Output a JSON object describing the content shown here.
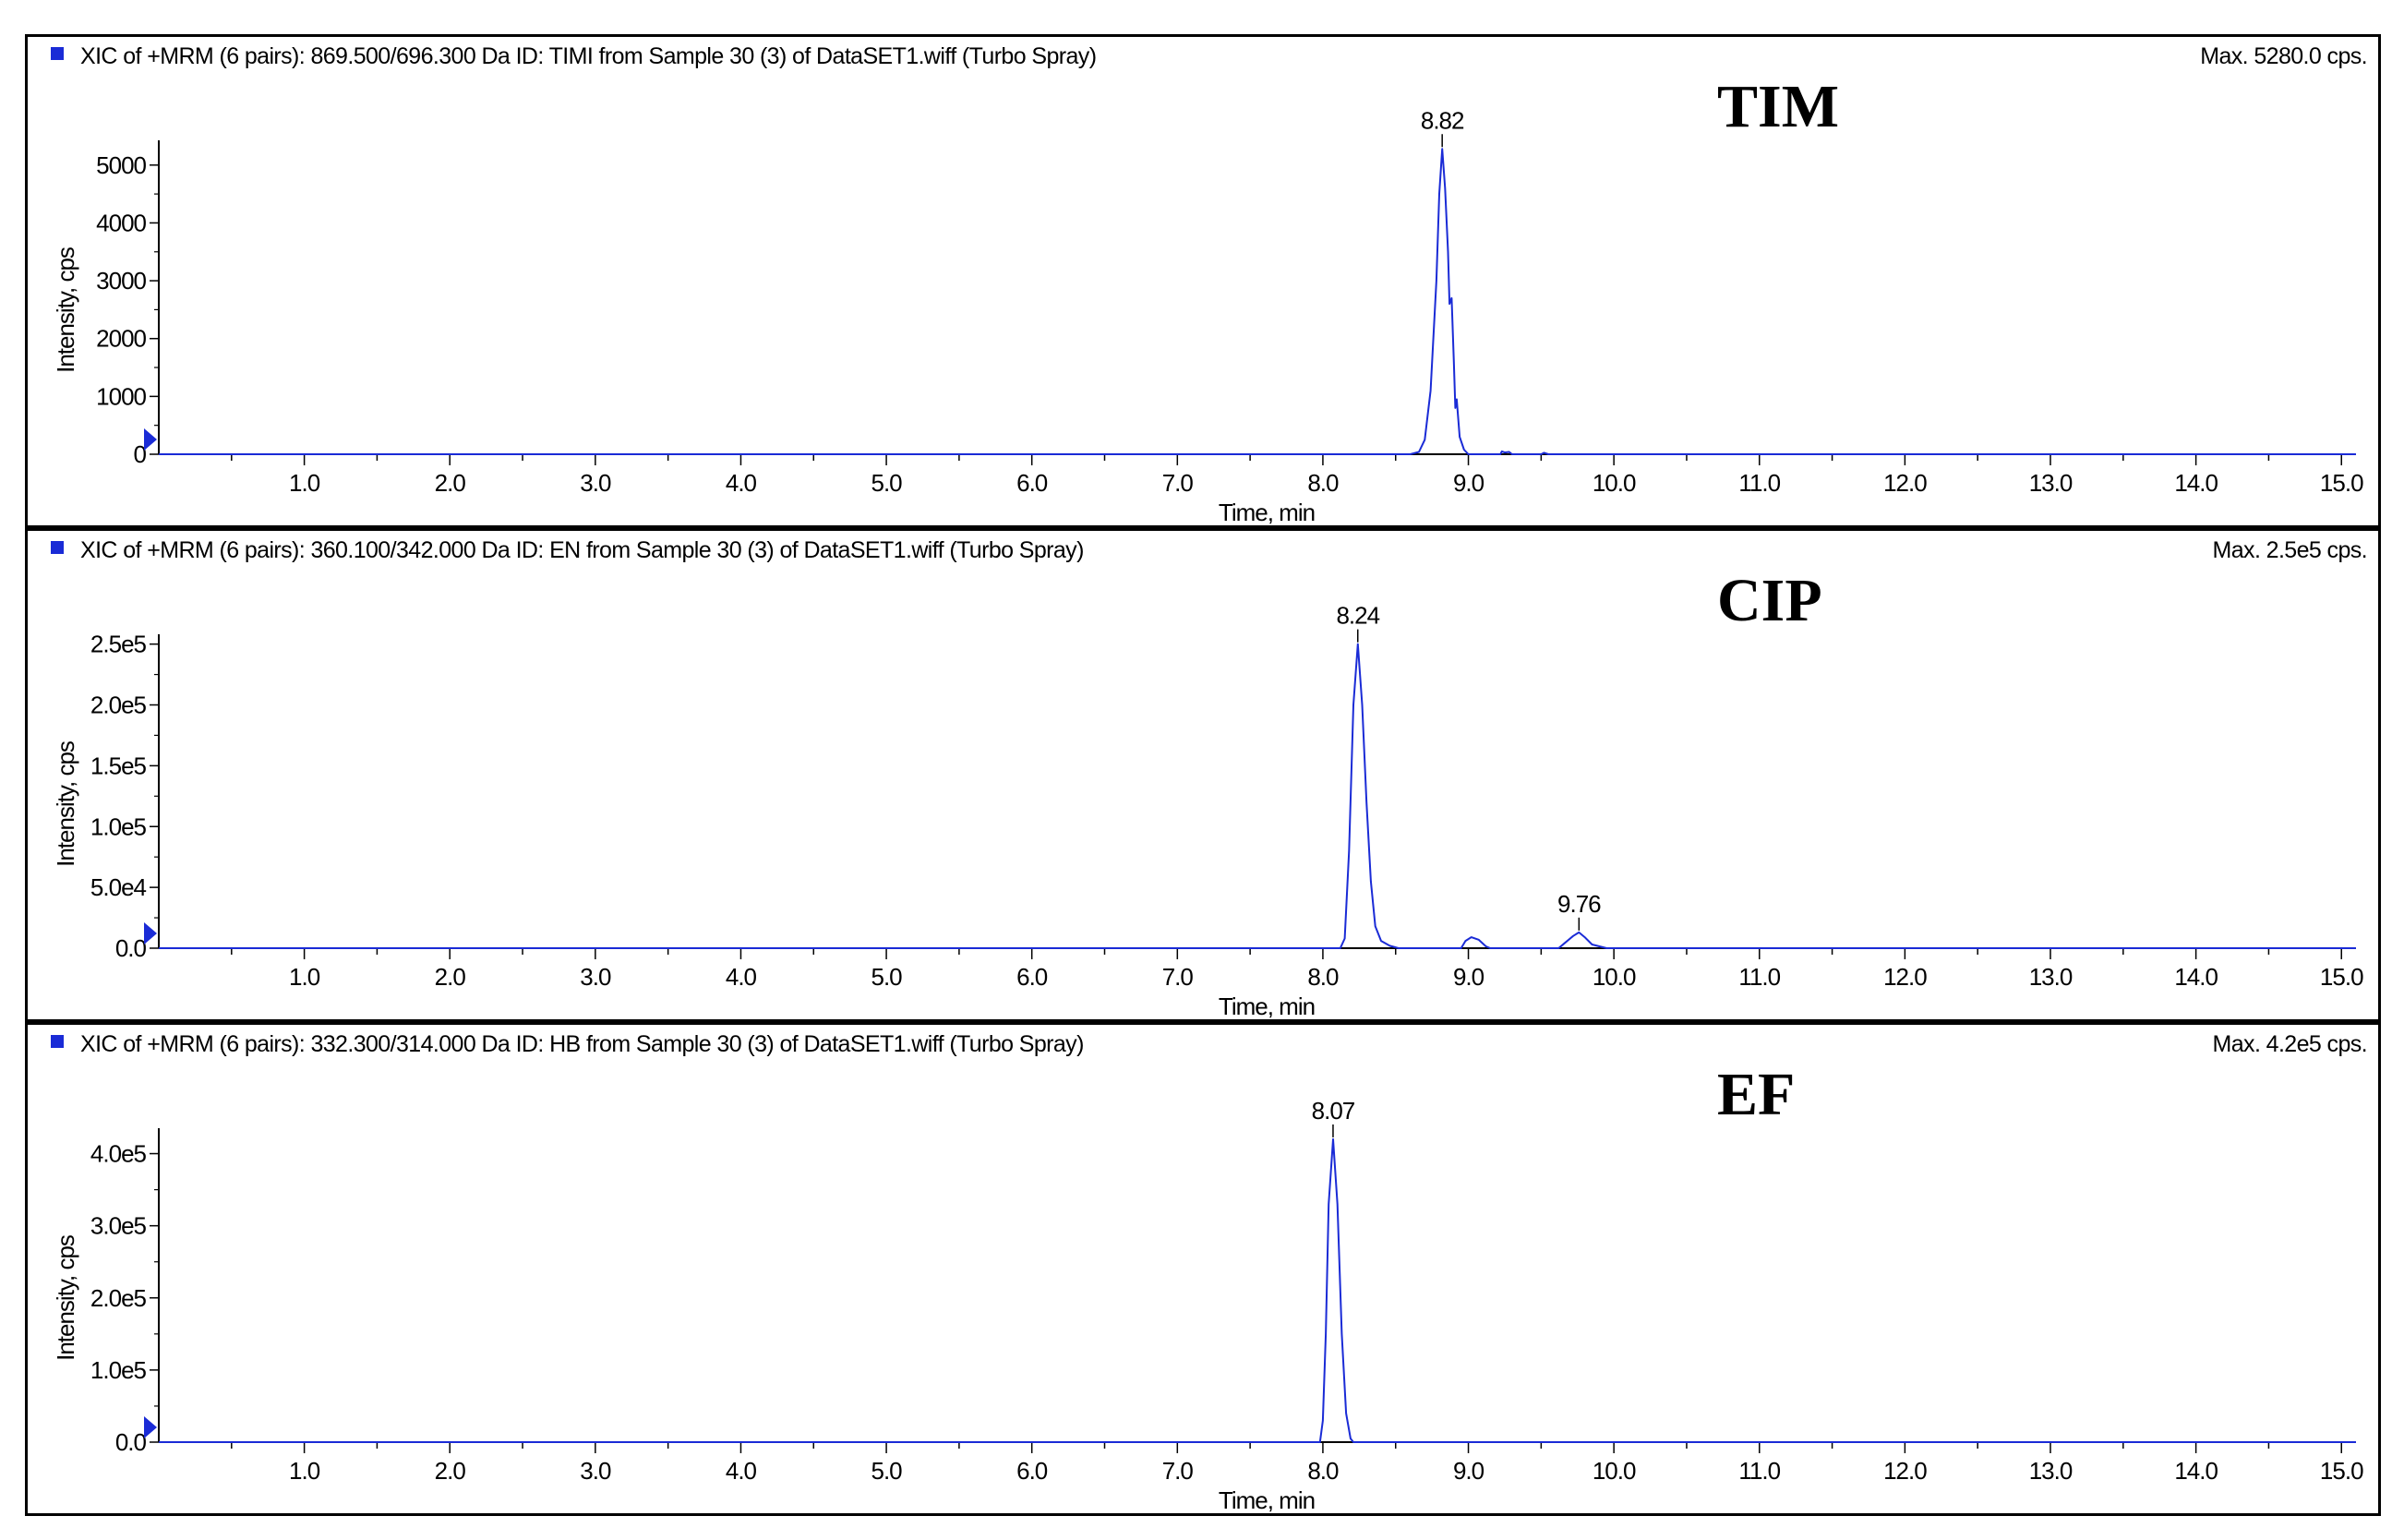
{
  "chart_data": [
    {
      "type": "line",
      "header": "XIC of +MRM (6 pairs): 869.500/696.300 Da ID: TIMI from Sample 30 (3) of DataSET1.wiff (Turbo Spray)",
      "max_label": "Max. 5280.0 cps.",
      "compound": "TIM",
      "xlabel": "Time, min",
      "ylabel": "Intensity, cps",
      "xlim": [
        0,
        15.1
      ],
      "ylim": [
        0,
        5300
      ],
      "xticks": [
        "1.0",
        "2.0",
        "3.0",
        "4.0",
        "5.0",
        "6.0",
        "7.0",
        "8.0",
        "9.0",
        "10.0",
        "11.0",
        "12.0",
        "13.0",
        "14.0",
        "15.0"
      ],
      "yticks": [
        {
          "v": 0,
          "label": "0"
        },
        {
          "v": 1000,
          "label": "1000"
        },
        {
          "v": 2000,
          "label": "2000"
        },
        {
          "v": 3000,
          "label": "3000"
        },
        {
          "v": 4000,
          "label": "4000"
        },
        {
          "v": 5000,
          "label": "5000"
        }
      ],
      "peak_labels": [
        {
          "x": 8.82,
          "y": 5280,
          "label": "8.82"
        }
      ],
      "series": [
        {
          "color": "#1a2bd6",
          "points": [
            [
              0,
              0
            ],
            [
              8.6,
              0
            ],
            [
              8.66,
              40
            ],
            [
              8.7,
              250
            ],
            [
              8.74,
              1100
            ],
            [
              8.78,
              3000
            ],
            [
              8.8,
              4500
            ],
            [
              8.82,
              5280
            ],
            [
              8.84,
              4600
            ],
            [
              8.86,
              3500
            ],
            [
              8.87,
              2600
            ],
            [
              8.885,
              2700
            ],
            [
              8.9,
              1600
            ],
            [
              8.91,
              800
            ],
            [
              8.92,
              950
            ],
            [
              8.94,
              300
            ],
            [
              8.97,
              80
            ],
            [
              9.0,
              0
            ],
            [
              9.22,
              0
            ],
            [
              9.23,
              50
            ],
            [
              9.25,
              30
            ],
            [
              9.28,
              40
            ],
            [
              9.3,
              0
            ],
            [
              9.5,
              0
            ],
            [
              9.52,
              25
            ],
            [
              9.55,
              0
            ],
            [
              15.1,
              0
            ]
          ]
        }
      ]
    },
    {
      "type": "line",
      "header": "XIC of +MRM (6 pairs): 360.100/342.000 Da ID: EN from Sample 30 (3) of DataSET1.wiff (Turbo Spray)",
      "max_label": "Max. 2.5e5 cps.",
      "compound": "CIP",
      "xlabel": "Time, min",
      "ylabel": "Intensity, cps",
      "xlim": [
        0,
        15.1
      ],
      "ylim": [
        0,
        252000
      ],
      "xticks": [
        "1.0",
        "2.0",
        "3.0",
        "4.0",
        "5.0",
        "6.0",
        "7.0",
        "8.0",
        "9.0",
        "10.0",
        "11.0",
        "12.0",
        "13.0",
        "14.0",
        "15.0"
      ],
      "yticks": [
        {
          "v": 0,
          "label": "0.0"
        },
        {
          "v": 50000,
          "label": "5.0e4"
        },
        {
          "v": 100000,
          "label": "1.0e5"
        },
        {
          "v": 150000,
          "label": "1.5e5"
        },
        {
          "v": 200000,
          "label": "2.0e5"
        },
        {
          "v": 250000,
          "label": "2.5e5"
        }
      ],
      "peak_labels": [
        {
          "x": 8.24,
          "y": 250000,
          "label": "8.24"
        },
        {
          "x": 9.76,
          "y": 13000,
          "label": "9.76"
        }
      ],
      "series": [
        {
          "color": "#1a2bd6",
          "points": [
            [
              0,
              0
            ],
            [
              8.12,
              0
            ],
            [
              8.15,
              8000
            ],
            [
              8.18,
              80000
            ],
            [
              8.21,
              200000
            ],
            [
              8.24,
              250000
            ],
            [
              8.27,
              200000
            ],
            [
              8.3,
              120000
            ],
            [
              8.33,
              55000
            ],
            [
              8.36,
              18000
            ],
            [
              8.4,
              6000
            ],
            [
              8.46,
              2000
            ],
            [
              8.52,
              0
            ],
            [
              8.95,
              0
            ],
            [
              8.98,
              6000
            ],
            [
              9.02,
              9000
            ],
            [
              9.07,
              7000
            ],
            [
              9.12,
              1500
            ],
            [
              9.15,
              0
            ],
            [
              9.62,
              0
            ],
            [
              9.66,
              4000
            ],
            [
              9.72,
              10000
            ],
            [
              9.76,
              13000
            ],
            [
              9.8,
              9000
            ],
            [
              9.85,
              3000
            ],
            [
              9.9,
              1500
            ],
            [
              9.95,
              0
            ],
            [
              15.1,
              0
            ]
          ]
        }
      ]
    },
    {
      "type": "line",
      "header": "XIC of +MRM (6 pairs): 332.300/314.000 Da ID: HB from Sample 30 (3) of DataSET1.wiff (Turbo Spray)",
      "max_label": "Max. 4.2e5 cps.",
      "compound": "EF",
      "xlabel": "Time, min",
      "ylabel": "Intensity, cps",
      "xlim": [
        0,
        15.1
      ],
      "ylim": [
        0,
        425000
      ],
      "xticks": [
        "1.0",
        "2.0",
        "3.0",
        "4.0",
        "5.0",
        "6.0",
        "7.0",
        "8.0",
        "9.0",
        "10.0",
        "11.0",
        "12.0",
        "13.0",
        "14.0",
        "15.0"
      ],
      "yticks": [
        {
          "v": 0,
          "label": "0.0"
        },
        {
          "v": 100000,
          "label": "1.0e5"
        },
        {
          "v": 200000,
          "label": "2.0e5"
        },
        {
          "v": 300000,
          "label": "3.0e5"
        },
        {
          "v": 400000,
          "label": "4.0e5"
        }
      ],
      "peak_labels": [
        {
          "x": 8.07,
          "y": 420000,
          "label": "8.07"
        }
      ],
      "series": [
        {
          "color": "#1a2bd6",
          "points": [
            [
              0,
              0
            ],
            [
              7.98,
              0
            ],
            [
              8.0,
              30000
            ],
            [
              8.02,
              150000
            ],
            [
              8.04,
              330000
            ],
            [
              8.07,
              420000
            ],
            [
              8.1,
              330000
            ],
            [
              8.13,
              150000
            ],
            [
              8.16,
              40000
            ],
            [
              8.19,
              5000
            ],
            [
              8.21,
              0
            ],
            [
              15.1,
              0
            ]
          ]
        }
      ]
    }
  ]
}
